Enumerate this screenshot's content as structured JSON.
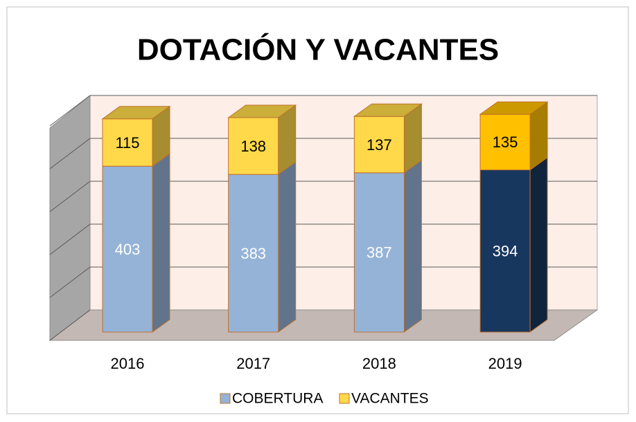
{
  "chart_data": {
    "type": "bar3d_stacked",
    "title": "DOTACIÓN Y VACANTES",
    "categories": [
      "2016",
      "2017",
      "2018",
      "2019"
    ],
    "series": [
      {
        "name": "COBERTURA",
        "color": "#95b3d7",
        "colors": [
          "#95b3d7",
          "#95b3d7",
          "#95b3d7",
          "#17375e"
        ],
        "values": [
          403,
          383,
          387,
          394
        ]
      },
      {
        "name": "VACANTES",
        "color": "#ffd94a",
        "colors": [
          "#ffd94a",
          "#ffd94a",
          "#ffd94a",
          "#ffc000"
        ],
        "values": [
          115,
          138,
          137,
          135
        ]
      }
    ],
    "ylim": [
      0,
      500
    ],
    "yticks": [
      0,
      100,
      200,
      300,
      400,
      500
    ],
    "grid": true
  }
}
